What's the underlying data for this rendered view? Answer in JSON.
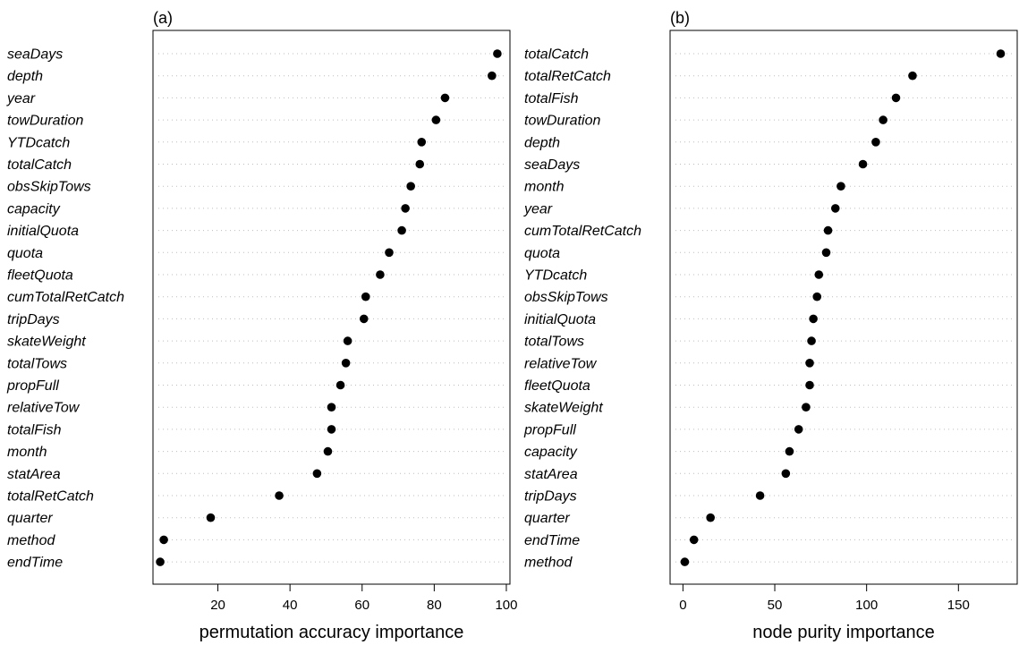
{
  "chart_data": [
    {
      "type": "scatter",
      "panel_label": "(a)",
      "xlabel": "permutation accuracy importance",
      "ylabel": "",
      "xlim": [
        2,
        101
      ],
      "xticks": [
        20,
        40,
        60,
        80,
        100
      ],
      "grid": "dotted horizontal guides",
      "categories": [
        "seaDays",
        "depth",
        "year",
        "towDuration",
        "YTDcatch",
        "totalCatch",
        "obsSkipTows",
        "capacity",
        "initialQuota",
        "quota",
        "fleetQuota",
        "cumTotalRetCatch",
        "tripDays",
        "skateWeight",
        "totalTows",
        "propFull",
        "relativeTow",
        "totalFish",
        "month",
        "statArea",
        "totalRetCatch",
        "quarter",
        "method",
        "endTime"
      ],
      "values": [
        97.5,
        96,
        83,
        80.5,
        76.5,
        76,
        73.5,
        72,
        71,
        67.5,
        65,
        61,
        60.5,
        56,
        55.5,
        54,
        51.5,
        51.5,
        50.5,
        47.5,
        37,
        18,
        5,
        4
      ]
    },
    {
      "type": "scatter",
      "panel_label": "(b)",
      "xlabel": "node purity importance",
      "ylabel": "",
      "xlim": [
        -7,
        182
      ],
      "xticks": [
        0,
        50,
        100,
        150
      ],
      "grid": "dotted horizontal guides",
      "categories": [
        "totalCatch",
        "totalRetCatch",
        "totalFish",
        "towDuration",
        "depth",
        "seaDays",
        "month",
        "year",
        "cumTotalRetCatch",
        "quota",
        "YTDcatch",
        "obsSkipTows",
        "initialQuota",
        "totalTows",
        "relativeTow",
        "fleetQuota",
        "skateWeight",
        "propFull",
        "capacity",
        "statArea",
        "tripDays",
        "quarter",
        "endTime",
        "method"
      ],
      "values": [
        173,
        125,
        116,
        109,
        105,
        98,
        86,
        83,
        79,
        78,
        74,
        73,
        71,
        70,
        69,
        69,
        67,
        63,
        58,
        56,
        42,
        15,
        6,
        1
      ]
    }
  ]
}
